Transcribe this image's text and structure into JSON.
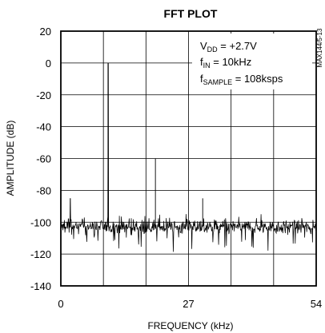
{
  "chart_data": {
    "type": "line",
    "title": "FFT PLOT",
    "xlabel": "FREQUENCY (kHz)",
    "ylabel": "AMPLITUDE (dB)",
    "xlim": [
      0,
      54
    ],
    "ylim": [
      -140,
      20
    ],
    "x_ticks": [
      "0",
      "27",
      "54"
    ],
    "y_ticks": [
      "20",
      "0",
      "-20",
      "-40",
      "-60",
      "-80",
      "-100",
      "-120",
      "-140"
    ],
    "grid": true,
    "annotations": {
      "vdd": {
        "main": "V",
        "sub": "DD",
        "rest": " = +2.7V"
      },
      "fin": {
        "main": "f",
        "sub": "IN",
        "rest": " = 10kHz"
      },
      "fsample": {
        "main": "f",
        "sub": "SAMPLE",
        "rest": " = 108ksps"
      }
    },
    "figure_id": "MAX144/5-13",
    "series": [
      {
        "signal_peak": {
          "x": 10,
          "y": 0
        },
        "spurs": [
          {
            "x": 2,
            "y": -85
          },
          {
            "x": 20,
            "y": -60
          },
          {
            "x": 30,
            "y": -85
          }
        ],
        "noise_floor_db": -103
      }
    ]
  }
}
